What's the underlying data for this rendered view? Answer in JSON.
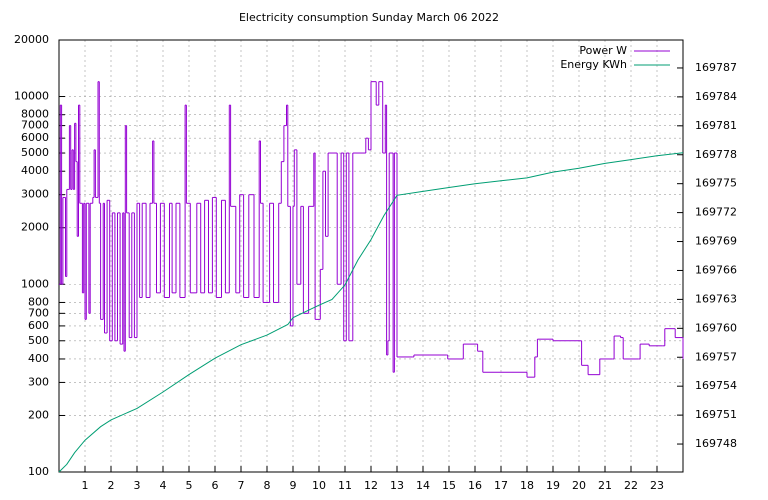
{
  "chart_data": {
    "type": "line",
    "style": "steps",
    "log_y": true,
    "grid": true,
    "legend": "top-right",
    "title": "Electricity consumption Sunday March 06 2022",
    "xlim": [
      0,
      24
    ],
    "xticks": [
      1,
      2,
      3,
      4,
      5,
      6,
      7,
      8,
      9,
      10,
      11,
      12,
      13,
      14,
      15,
      16,
      17,
      18,
      19,
      20,
      21,
      22,
      23
    ],
    "ylim": [
      100,
      20000
    ],
    "yticks": [
      100,
      200,
      300,
      400,
      500,
      600,
      700,
      800,
      1000,
      2000,
      3000,
      4000,
      5000,
      6000,
      7000,
      8000,
      10000,
      20000
    ],
    "y2lim": [
      169745.1,
      169789.9
    ],
    "y2ticks": [
      169748,
      169751,
      169754,
      169757,
      169760,
      169763,
      169766,
      169769,
      169772,
      169775,
      169778,
      169781,
      169784,
      169787
    ],
    "series": [
      {
        "name": "Power W",
        "color": "#9400d3",
        "x": [
          0,
          0.05,
          0.1,
          0.15,
          0.25,
          0.3,
          0.4,
          0.45,
          0.5,
          0.55,
          0.6,
          0.65,
          0.7,
          0.75,
          0.8,
          0.9,
          0.95,
          1.0,
          1.05,
          1.15,
          1.2,
          1.3,
          1.35,
          1.4,
          1.5,
          1.55,
          1.6,
          1.7,
          1.75,
          1.85,
          1.95,
          2.05,
          2.15,
          2.25,
          2.35,
          2.45,
          2.5,
          2.55,
          2.6,
          2.7,
          2.8,
          2.9,
          3.0,
          3.1,
          3.2,
          3.35,
          3.5,
          3.6,
          3.65,
          3.75,
          3.9,
          4.05,
          4.25,
          4.35,
          4.5,
          4.65,
          4.85,
          4.9,
          5.05,
          5.3,
          5.45,
          5.6,
          5.75,
          5.9,
          6.05,
          6.25,
          6.4,
          6.55,
          6.6,
          6.8,
          6.95,
          7.1,
          7.3,
          7.5,
          7.7,
          7.75,
          7.85,
          8.1,
          8.25,
          8.45,
          8.55,
          8.65,
          8.75,
          8.8,
          8.9,
          9.0,
          9.05,
          9.15,
          9.3,
          9.4,
          9.6,
          9.8,
          9.85,
          10.05,
          10.15,
          10.25,
          10.35,
          10.5,
          10.7,
          10.85,
          10.95,
          11.05,
          11.15,
          11.3,
          11.5,
          11.8,
          11.9,
          12.0,
          12.2,
          12.3,
          12.45,
          12.55,
          12.6,
          12.65,
          12.7,
          12.85,
          12.9,
          13.0,
          13.6,
          13.65,
          14.9,
          14.95,
          15.5,
          15.55,
          16.0,
          16.1,
          16.3,
          18.0,
          18.25,
          18.3,
          18.4,
          19.0,
          20.0,
          20.1,
          20.35,
          20.75,
          20.8,
          21.3,
          21.35,
          21.6,
          21.7,
          22.3,
          22.35,
          22.7,
          23.2,
          23.3,
          23.7,
          24
        ],
        "values": [
          1000,
          9000,
          1000,
          2900,
          1100,
          3200,
          7000,
          3200,
          5200,
          3200,
          7200,
          4500,
          1800,
          9000,
          2700,
          900,
          2700,
          650,
          2700,
          700,
          2700,
          2900,
          5200,
          2900,
          12000,
          2700,
          650,
          2700,
          550,
          2800,
          500,
          2400,
          500,
          2400,
          480,
          2400,
          440,
          7000,
          2400,
          520,
          2400,
          520,
          2700,
          850,
          2700,
          850,
          2700,
          5800,
          2700,
          900,
          2700,
          850,
          2700,
          900,
          2700,
          850,
          9000,
          2700,
          900,
          2700,
          900,
          2800,
          900,
          2900,
          850,
          2800,
          900,
          9000,
          2600,
          900,
          3000,
          850,
          3000,
          850,
          5800,
          2700,
          800,
          2700,
          800,
          2700,
          4500,
          7000,
          9000,
          2600,
          600,
          2600,
          5200,
          1000,
          2600,
          700,
          2600,
          5000,
          650,
          1200,
          4000,
          1800,
          5000,
          5000,
          1000,
          5000,
          500,
          5000,
          500,
          5000,
          5000,
          6000,
          5200,
          12000,
          9000,
          12000,
          5000,
          9000,
          420,
          500,
          5000,
          340,
          5000,
          410,
          410,
          420,
          420,
          400,
          400,
          480,
          480,
          440,
          340,
          320,
          320,
          410,
          510,
          500,
          500,
          370,
          330,
          330,
          400,
          400,
          530,
          520,
          400,
          400,
          480,
          470,
          470,
          580,
          520,
          400
        ]
      },
      {
        "name": "Energy KWh",
        "color": "#009e73",
        "axis": "y2",
        "x": [
          0,
          0.3,
          0.6,
          1,
          1.6,
          2,
          3,
          4,
          5,
          6,
          7,
          8,
          8.8,
          9,
          10,
          10.5,
          11,
          11.5,
          12,
          12.5,
          13,
          14,
          15,
          16,
          17,
          18,
          19,
          20,
          21,
          22,
          23,
          24
        ],
        "values": [
          169745.1,
          169745.9,
          169747.1,
          169748.4,
          169749.8,
          169750.5,
          169751.7,
          169753.4,
          169755.2,
          169756.9,
          169758.3,
          169759.3,
          169760.4,
          169761.1,
          169762.4,
          169763,
          169764.5,
          169767.1,
          169769.2,
          169771.7,
          169773.8,
          169774.2,
          169774.6,
          169775,
          169775.3,
          169775.6,
          169776.2,
          169776.6,
          169777.1,
          169777.5,
          169777.9,
          169778.2
        ]
      }
    ]
  }
}
